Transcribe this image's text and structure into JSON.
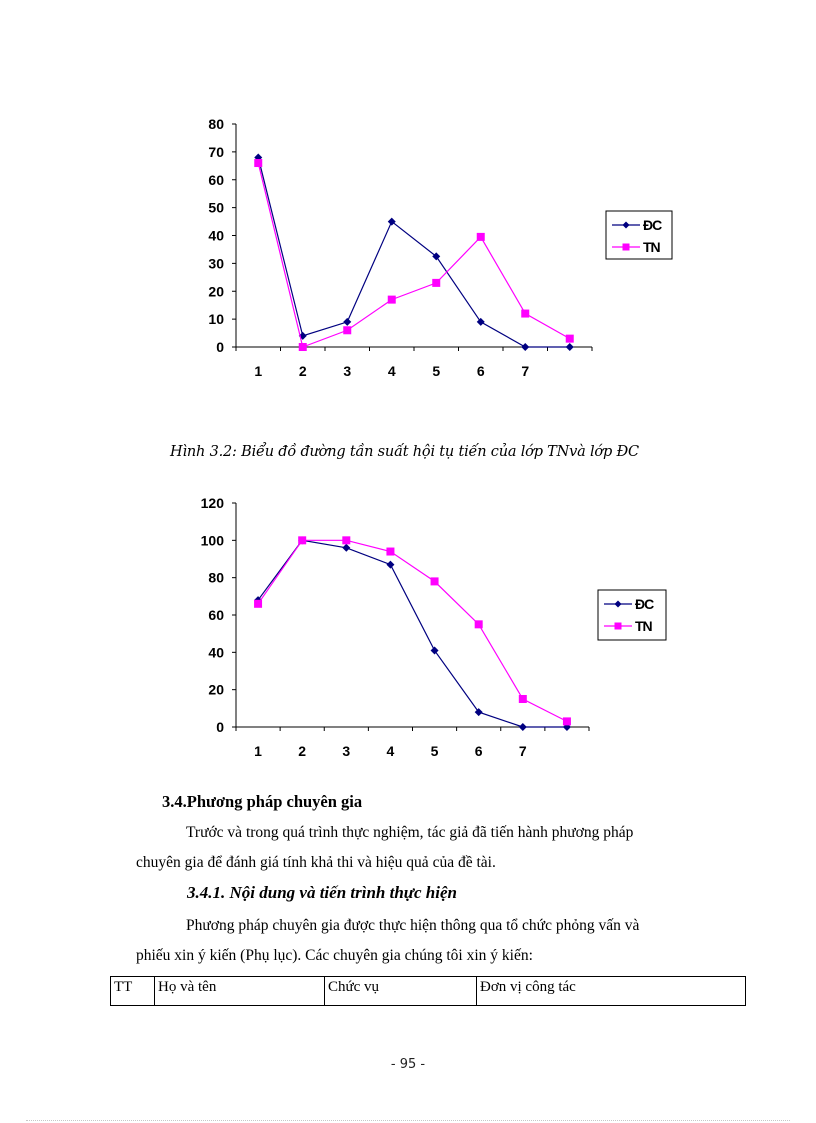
{
  "chart_data": [
    {
      "type": "line",
      "title": "",
      "xlabel": "",
      "ylabel": "",
      "categories": [
        "1",
        "2",
        "3",
        "4",
        "5",
        "6",
        "7",
        ""
      ],
      "ylim": [
        0,
        80
      ],
      "yticks": [
        0,
        10,
        20,
        30,
        40,
        50,
        60,
        70,
        80
      ],
      "grid": false,
      "legend_position": "right",
      "series": [
        {
          "name": "ĐC",
          "color": "#000080",
          "marker": "diamond",
          "values": [
            68,
            4,
            9,
            45,
            32.5,
            9,
            0,
            0
          ]
        },
        {
          "name": "TN",
          "color": "#FF00FF",
          "marker": "square",
          "values": [
            66,
            0,
            6,
            17,
            23,
            39.5,
            12,
            3
          ]
        }
      ]
    },
    {
      "type": "line",
      "title": "",
      "xlabel": "",
      "ylabel": "",
      "categories": [
        "1",
        "2",
        "3",
        "4",
        "5",
        "6",
        "7",
        ""
      ],
      "ylim": [
        0,
        120
      ],
      "yticks": [
        0,
        20,
        40,
        60,
        80,
        100,
        120
      ],
      "grid": false,
      "legend_position": "right",
      "series": [
        {
          "name": "ĐC",
          "color": "#000080",
          "marker": "diamond",
          "values": [
            68,
            100,
            96,
            87,
            41,
            8,
            0,
            0
          ]
        },
        {
          "name": "TN",
          "color": "#FF00FF",
          "marker": "square",
          "values": [
            66,
            100,
            100,
            94,
            78,
            55,
            15,
            3
          ]
        }
      ]
    }
  ],
  "caption": "Hình 3.2: Biểu đồ đường tần suất hội tụ tiến của lớp TNvà lớp ĐC",
  "section": {
    "heading": "3.4.Phương pháp chuyên gia",
    "para1_line1": "Trước và trong quá trình thực nghiệm, tác giả đã tiến hành phương pháp",
    "para1_line2": "chuyên gia để đánh giá tính khả thi và hiệu quả của đề tài.",
    "subheading": "3.4.1. Nội dung và tiến trình thực hiện",
    "para2_line1": "Phương pháp chuyên gia được thực hiện thông qua tổ chức phỏng vấn và",
    "para2_line2": "phiếu xin ý kiến (Phụ lục). Các chuyên gia chúng tôi xin ý kiến:"
  },
  "table": {
    "headers": [
      "TT",
      "Họ và tên",
      "Chức vụ",
      "Đơn vị công tác"
    ]
  },
  "footer": {
    "page_number": "- 95 -"
  }
}
